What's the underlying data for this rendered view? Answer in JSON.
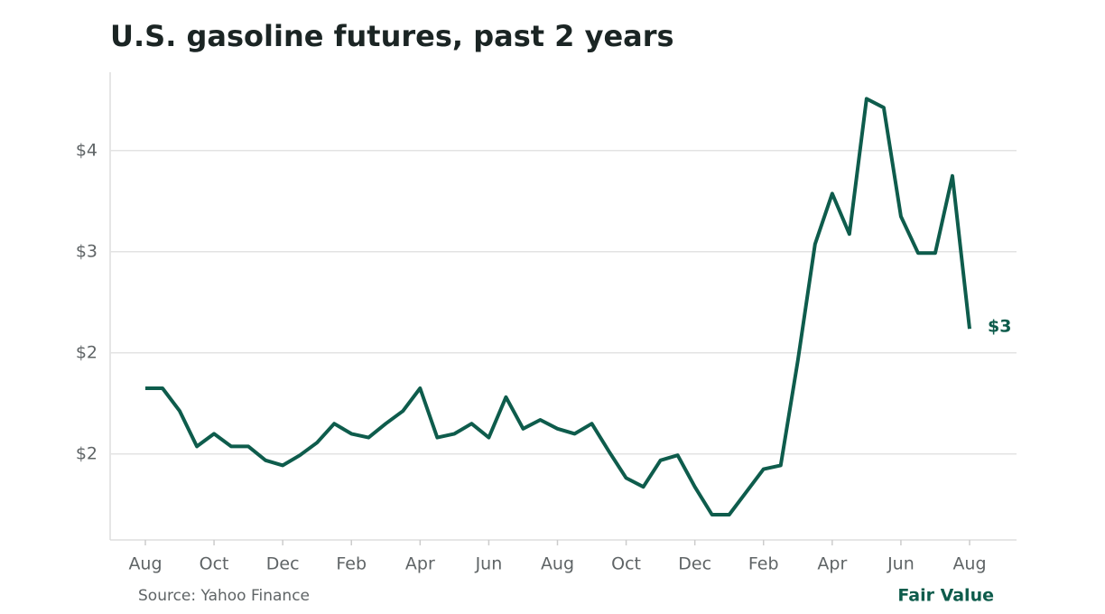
{
  "chart_data": {
    "type": "line",
    "title": "U.S. gasoline futures, past 2 years",
    "source": "Source: Yahoo Finance",
    "brand": "Fair Value",
    "categories": [
      "Aug",
      null,
      null,
      null,
      "Oct",
      null,
      null,
      null,
      "Dec",
      null,
      null,
      null,
      "Feb",
      null,
      null,
      null,
      "Apr",
      null,
      null,
      null,
      "Jun",
      null,
      null,
      null,
      "Aug",
      null,
      null,
      null,
      "Oct",
      null,
      null,
      null,
      "Dec",
      null,
      null,
      null,
      "Feb",
      null,
      null,
      null,
      "Apr",
      null,
      null,
      null,
      "Jun",
      null,
      null,
      null,
      "Aug"
    ],
    "values": [
      2.07,
      2.07,
      1.89,
      1.61,
      1.71,
      1.61,
      1.61,
      1.5,
      1.46,
      1.54,
      1.64,
      1.79,
      1.71,
      1.68,
      1.79,
      1.89,
      2.07,
      1.68,
      1.71,
      1.79,
      1.68,
      2.0,
      1.75,
      1.82,
      1.75,
      1.71,
      1.79,
      1.57,
      1.36,
      1.29,
      1.5,
      1.54,
      1.29,
      1.07,
      1.07,
      1.25,
      1.43,
      1.46,
      2.29,
      3.21,
      3.61,
      3.29,
      4.36,
      4.29,
      3.43,
      3.14,
      3.14,
      3.75,
      2.54
    ],
    "value_labels": [
      null,
      null,
      null,
      null,
      null,
      null,
      null,
      null,
      null,
      null,
      null,
      null,
      null,
      null,
      null,
      null,
      null,
      null,
      null,
      null,
      null,
      null,
      null,
      null,
      null,
      null,
      null,
      null,
      null,
      null,
      null,
      null,
      null,
      null,
      null,
      null,
      null,
      null,
      null,
      null,
      null,
      null,
      null,
      null,
      null,
      null,
      null,
      null,
      "$3"
    ],
    "color": "#0e5c4c",
    "ylim": [
      0.87,
      4.57
    ],
    "yticks": [
      {
        "value": 1.55,
        "label": "$2"
      },
      {
        "value": 2.35,
        "label": "$2"
      },
      {
        "value": 3.15,
        "label": "$3"
      },
      {
        "value": 3.95,
        "label": "$4"
      }
    ],
    "grid": true
  }
}
